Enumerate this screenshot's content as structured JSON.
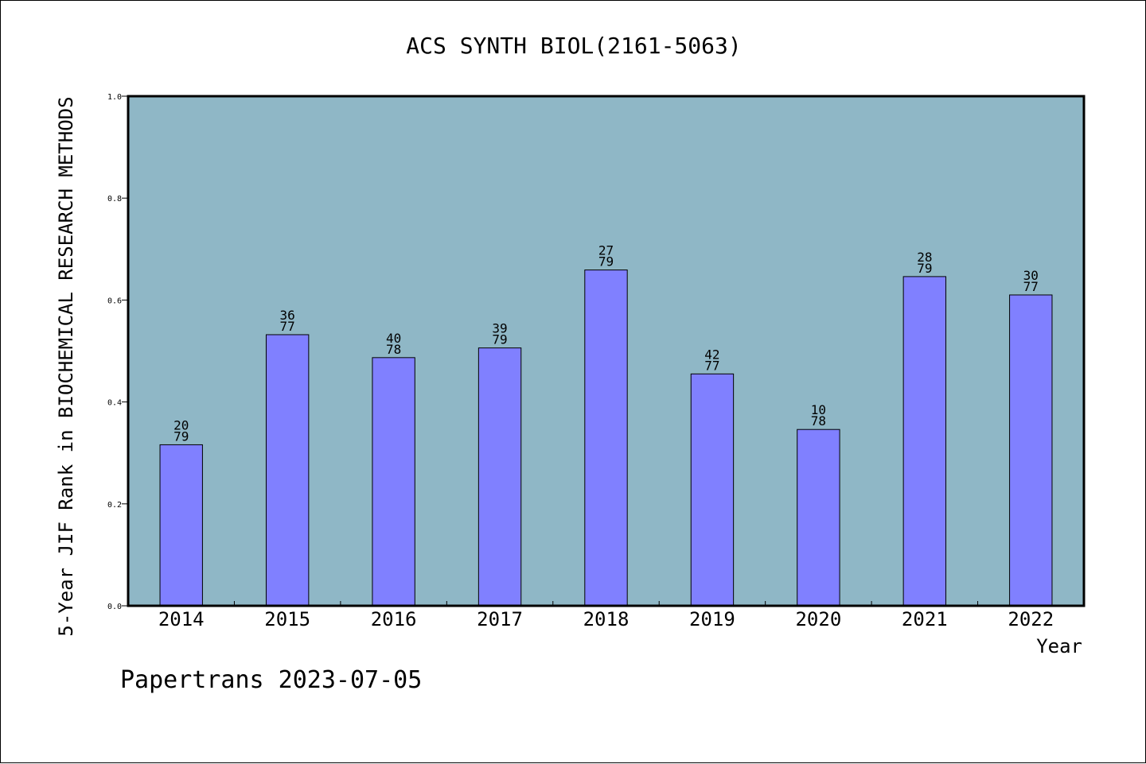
{
  "chart_data": {
    "type": "bar",
    "title": "ACS SYNTH BIOL(2161-5063)",
    "xlabel": "Year",
    "ylabel": "5-Year JIF Rank in BIOCHEMICAL RESEARCH METHODS",
    "ylim": [
      0,
      1.0
    ],
    "yticks": [
      "0.0",
      "0.2",
      "0.4",
      "0.6",
      "0.8",
      "1.0"
    ],
    "categories": [
      "2014",
      "2015",
      "2016",
      "2017",
      "2018",
      "2019",
      "2020",
      "2021",
      "2022"
    ],
    "values": [
      0.316,
      0.532,
      0.487,
      0.506,
      0.659,
      0.455,
      0.346,
      0.646,
      0.61
    ],
    "labels_top": [
      "20",
      "36",
      "40",
      "39",
      "27",
      "42",
      "10",
      "28",
      "30"
    ],
    "labels_bottom": [
      "79",
      "77",
      "78",
      "79",
      "79",
      "77",
      "78",
      "79",
      "77"
    ],
    "grid": false,
    "colors": {
      "plot_bg": "#8fb7c6",
      "bar": "#8080ff",
      "bar_edge": "#000000"
    }
  },
  "footer": "Papertrans 2023-07-05"
}
